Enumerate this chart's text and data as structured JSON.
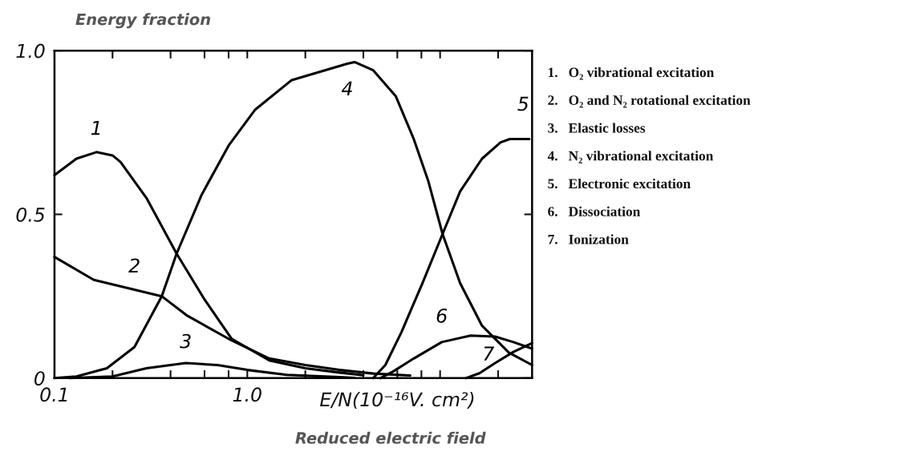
{
  "chart_data": {
    "type": "line",
    "ylabel": "Energy fraction",
    "xlabel": "E/N(10⁻¹⁶V. cm²)",
    "annotations": [
      "Reduced electric field",
      "1.   O₂ vibrational excitation",
      "2.   O₂ and N₂ rotational excitation",
      "3.   Elastic losses",
      "4.   N₂ vibrational excitation",
      "5.   Electronic excitation",
      "6.   Dissociation",
      "7.   Ionization"
    ],
    "log": "x",
    "xlim": [
      0.1,
      30
    ],
    "xticks": [
      {
        "value": 0.1,
        "label": "0.1"
      },
      {
        "value": 0.2,
        "label": null
      },
      {
        "value": 0.4,
        "label": null
      },
      {
        "value": 0.6,
        "label": null
      },
      {
        "value": 0.8,
        "label": null
      },
      {
        "value": 1,
        "label": "1.0"
      },
      {
        "value": 2,
        "label": null
      },
      {
        "value": 4,
        "label": null
      },
      {
        "value": 6,
        "label": null
      },
      {
        "value": 8,
        "label": null
      },
      {
        "value": 10,
        "label": null
      },
      {
        "value": 20,
        "label": null
      }
    ],
    "ylim": [
      0,
      1
    ],
    "yticks": [
      0,
      {
        "value": 0.5,
        "label": "0.5"
      },
      {
        "value": 1,
        "label": "1.0"
      }
    ],
    "grid": false,
    "legend": false,
    "series": [
      {
        "name": "1",
        "color": "#000000",
        "x": [
          0.1,
          0.13,
          0.165,
          0.2,
          0.22,
          0.3,
          0.43,
          0.6,
          0.83,
          1.3,
          2,
          3,
          4.0
        ],
        "values": [
          0.62,
          0.67,
          0.69,
          0.68,
          0.66,
          0.55,
          0.38,
          0.24,
          0.12,
          0.054,
          0.03,
          0.017,
          0.009
        ]
      },
      {
        "name": "2",
        "color": "#000000",
        "x": [
          0.1,
          0.16,
          0.26,
          0.36,
          0.49,
          0.8,
          1.3,
          2,
          3,
          4.5,
          7
        ],
        "values": [
          0.37,
          0.3,
          0.27,
          0.25,
          0.19,
          0.12,
          0.06,
          0.04,
          0.025,
          0.014,
          0.008
        ]
      },
      {
        "name": "3",
        "color": "#000000",
        "x": [
          0.12,
          0.2,
          0.3,
          0.48,
          0.7,
          1.0,
          1.6,
          3,
          3.6
        ],
        "values": [
          0,
          0.005,
          0.03,
          0.046,
          0.04,
          0.025,
          0.01,
          0.003,
          0.001
        ]
      },
      {
        "name": "4",
        "color": "#000000",
        "x": [
          0.1,
          0.13,
          0.187,
          0.26,
          0.36,
          0.43,
          0.58,
          0.8,
          1.1,
          1.7,
          3.3,
          3.6,
          4.5,
          5.9,
          7.3,
          8.7,
          10.3,
          12.7,
          16.5,
          22.7,
          30
        ],
        "values": [
          0,
          0.005,
          0.03,
          0.095,
          0.25,
          0.38,
          0.56,
          0.71,
          0.82,
          0.91,
          0.96,
          0.965,
          0.94,
          0.86,
          0.73,
          0.6,
          0.44,
          0.29,
          0.16,
          0.078,
          0.04
        ]
      },
      {
        "name": "5",
        "color": "#000000",
        "x": [
          4.5,
          5.2,
          6.3,
          8.1,
          10.3,
          12.7,
          16.5,
          20.6,
          23,
          29
        ],
        "values": [
          0,
          0.04,
          0.14,
          0.29,
          0.44,
          0.57,
          0.67,
          0.72,
          0.73,
          0.73
        ]
      },
      {
        "name": "6",
        "color": "#000000",
        "x": [
          4.9,
          5.7,
          7.3,
          10.2,
          14.4,
          19.3,
          24,
          30
        ],
        "values": [
          0,
          0.02,
          0.06,
          0.11,
          0.13,
          0.127,
          0.11,
          0.09
        ]
      },
      {
        "name": "7",
        "color": "#000000",
        "x": [
          13.6,
          16,
          19.3,
          24,
          30
        ],
        "values": [
          0,
          0.015,
          0.046,
          0.08,
          0.107
        ]
      }
    ]
  }
}
